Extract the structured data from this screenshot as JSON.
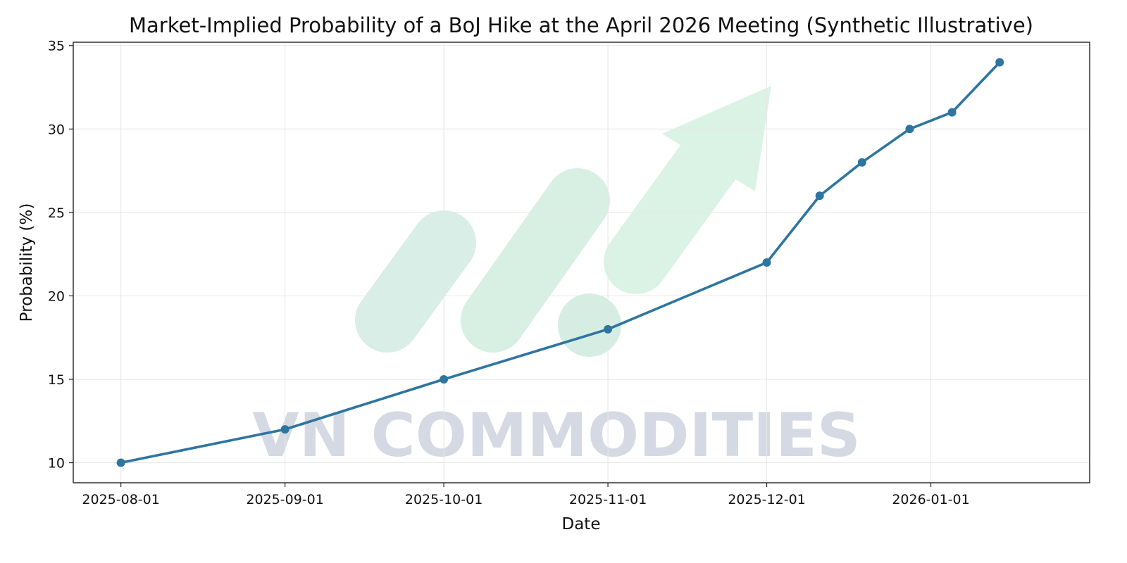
{
  "chart_data": {
    "type": "line",
    "title": "Market-Implied Probability of a BoJ Hike at the April 2026 Meeting (Synthetic Illustrative)",
    "xlabel": "Date",
    "ylabel": "Probability (%)",
    "x_ticks": [
      "2025-08-01",
      "2025-09-01",
      "2025-10-01",
      "2025-11-01",
      "2025-12-01",
      "2026-01-01"
    ],
    "y_ticks": [
      10,
      15,
      20,
      25,
      30,
      35
    ],
    "xlim": [
      "2025-07-23",
      "2026-01-31"
    ],
    "ylim": [
      8.8,
      35.2
    ],
    "grid": true,
    "series": [
      {
        "color": "#2e75a0",
        "marker": "circle",
        "points": [
          {
            "x": "2025-08-01",
            "y": 10
          },
          {
            "x": "2025-09-01",
            "y": 12
          },
          {
            "x": "2025-10-01",
            "y": 15
          },
          {
            "x": "2025-11-01",
            "y": 18
          },
          {
            "x": "2025-12-01",
            "y": 22
          },
          {
            "x": "2025-12-11",
            "y": 26
          },
          {
            "x": "2025-12-19",
            "y": 28
          },
          {
            "x": "2025-12-28",
            "y": 30
          },
          {
            "x": "2026-01-05",
            "y": 31
          },
          {
            "x": "2026-01-14",
            "y": 34
          }
        ]
      }
    ]
  },
  "watermark": {
    "text": "VN COMMODITIES",
    "text_color": "#d5d9e3",
    "logo_color": "#d8f0e3"
  }
}
